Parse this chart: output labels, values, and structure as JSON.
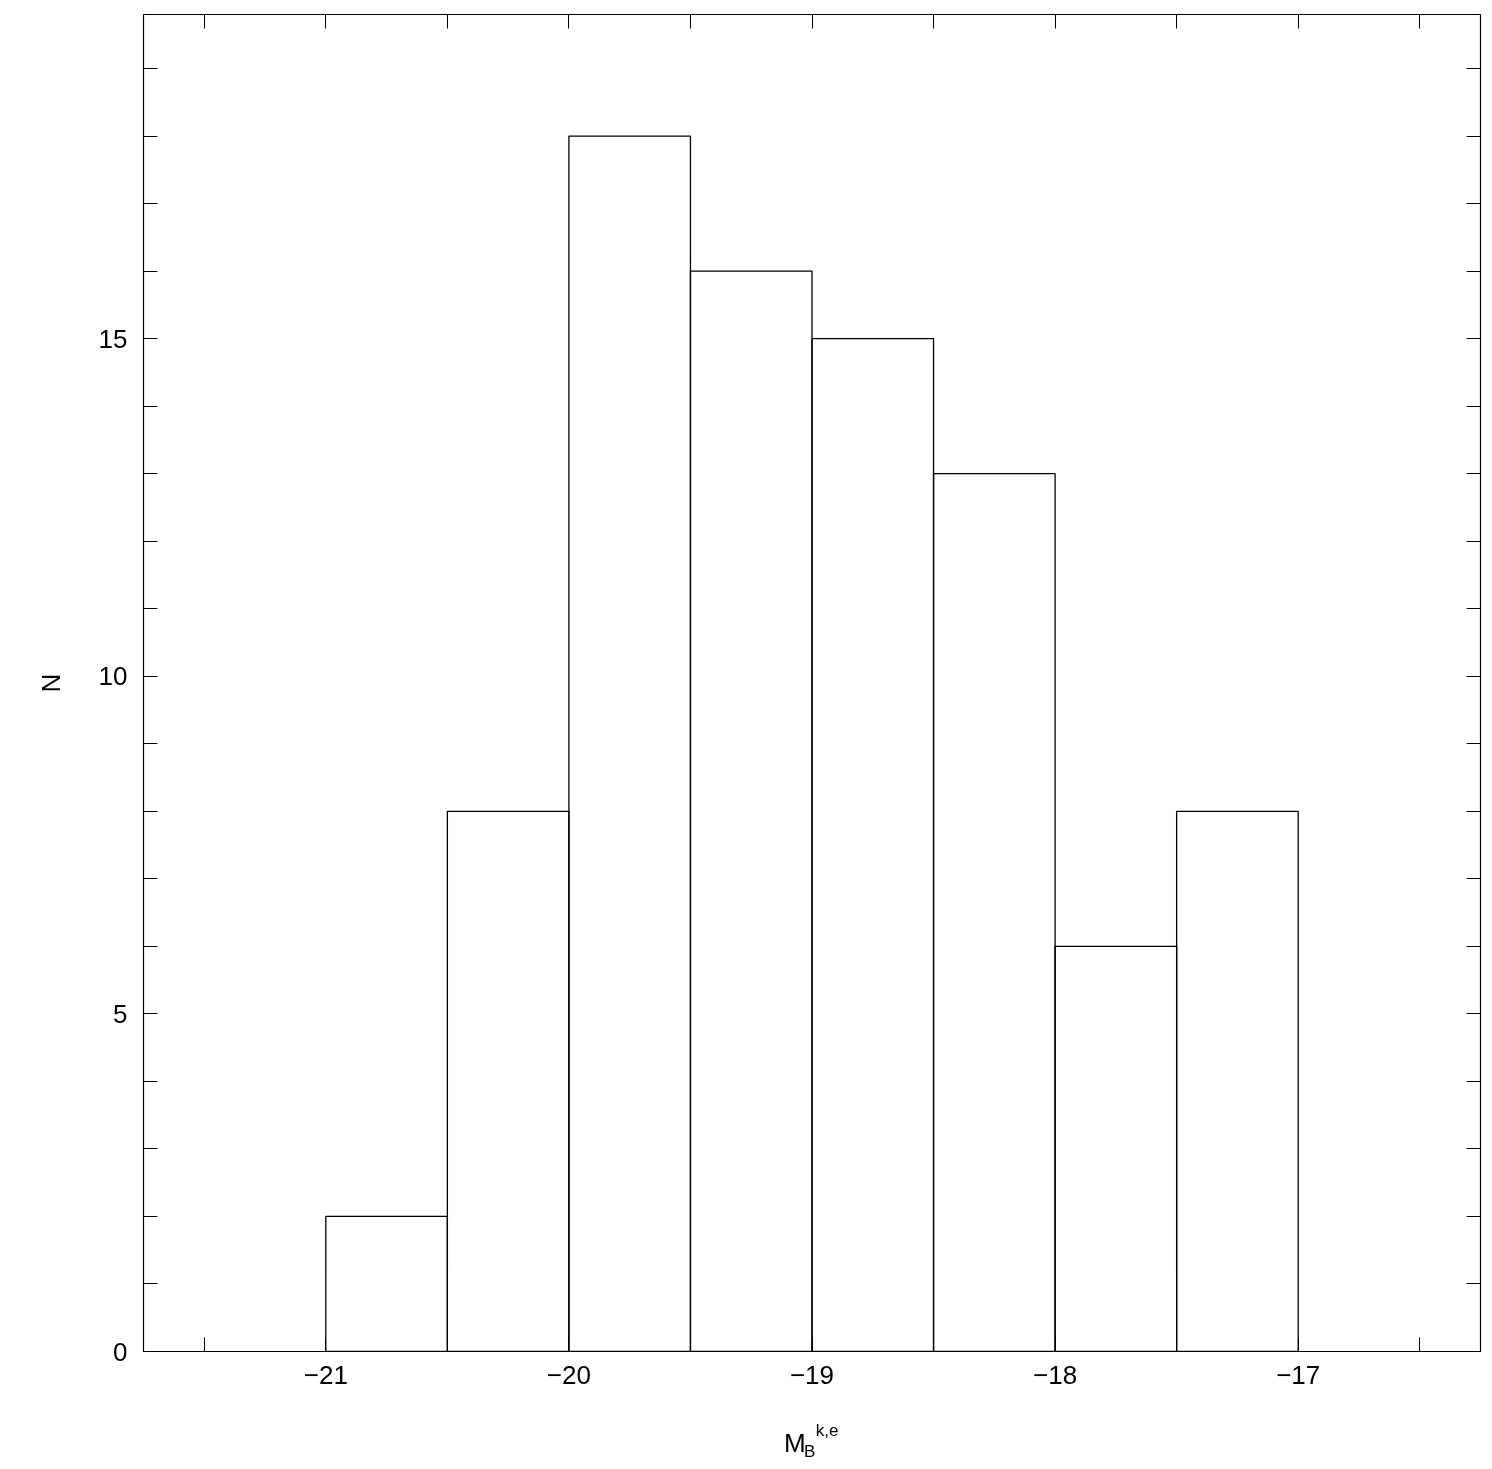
{
  "chart_data": {
    "type": "histogram",
    "xlabel": "M$_{B}$$^{k,e}$",
    "ylabel": "N",
    "bins": [
      -21,
      -20.5,
      -20,
      -19.5,
      -19,
      -18.5,
      -18,
      -17.5,
      -17
    ],
    "values": [
      2,
      8,
      18,
      16,
      15,
      13,
      6,
      8
    ],
    "color": "#000000",
    "xlim": [
      -21.75,
      -16.25
    ],
    "ylim": [
      0,
      19.8
    ],
    "xticks": [
      {
        "value": -21.5,
        "label": null
      },
      -21,
      {
        "value": -20.5,
        "label": null
      },
      -20,
      {
        "value": -19.5,
        "label": null
      },
      -19,
      {
        "value": -18.5,
        "label": null
      },
      -18,
      {
        "value": -17.5,
        "label": null
      },
      -17,
      {
        "value": -16.5,
        "label": null
      }
    ],
    "yticks": [
      0,
      {
        "value": 1,
        "label": null
      },
      {
        "value": 2,
        "label": null
      },
      {
        "value": 3,
        "label": null
      },
      {
        "value": 4,
        "label": null
      },
      5,
      {
        "value": 6,
        "label": null
      },
      {
        "value": 7,
        "label": null
      },
      {
        "value": 8,
        "label": null
      },
      {
        "value": 9,
        "label": null
      },
      10,
      {
        "value": 11,
        "label": null
      },
      {
        "value": 12,
        "label": null
      },
      {
        "value": 13,
        "label": null
      },
      {
        "value": 14,
        "label": null
      },
      15,
      {
        "value": 16,
        "label": null
      },
      {
        "value": 17,
        "label": null
      },
      {
        "value": 18,
        "label": null
      },
      {
        "value": 19,
        "label": null
      }
    ],
    "grid": false
  }
}
